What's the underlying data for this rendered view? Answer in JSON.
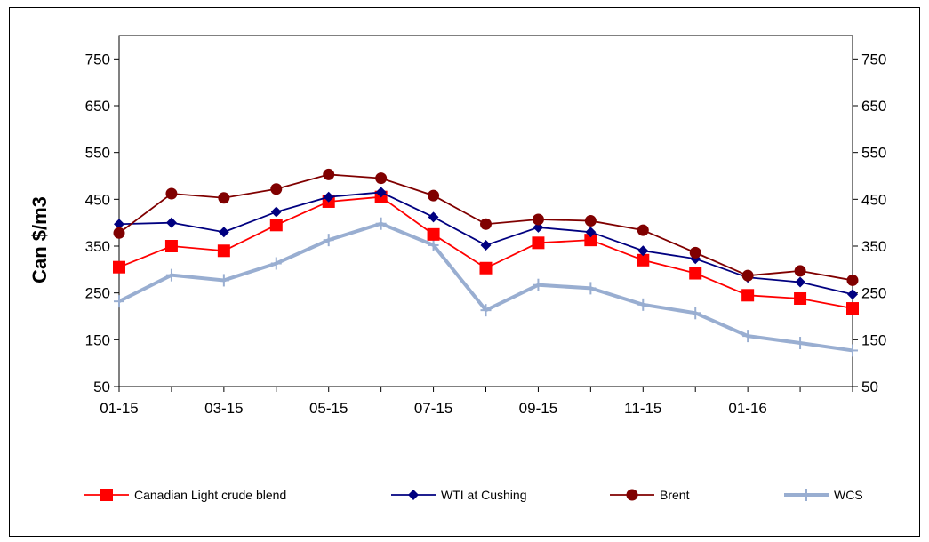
{
  "chart_data": {
    "type": "line",
    "ylabel": "Can $/m3",
    "xlabel": "",
    "title": "",
    "ylim": [
      50,
      800
    ],
    "y_ticks": [
      50,
      150,
      250,
      350,
      450,
      550,
      650,
      750
    ],
    "x": [
      "01-15",
      "02-15",
      "03-15",
      "04-15",
      "05-15",
      "06-15",
      "07-15",
      "08-15",
      "09-15",
      "10-15",
      "11-15",
      "12-15",
      "01-16",
      "02-16",
      "03-16"
    ],
    "x_tick_labels": [
      "01-15",
      "03-15",
      "05-15",
      "07-15",
      "09-15",
      "11-15",
      "01-16"
    ],
    "secondary_y_axis": true,
    "legend_position": "bottom",
    "series": [
      {
        "name": "Canadian Light crude blend",
        "color": "#ff0000",
        "marker": "square",
        "values": [
          305,
          350,
          340,
          395,
          445,
          455,
          375,
          303,
          357,
          363,
          320,
          292,
          245,
          238,
          217
        ]
      },
      {
        "name": "WTI at Cushing",
        "color": "#000080",
        "marker": "diamond",
        "values": [
          397,
          400,
          380,
          423,
          455,
          465,
          412,
          352,
          390,
          380,
          340,
          323,
          283,
          273,
          247
        ]
      },
      {
        "name": "Brent",
        "color": "#800000",
        "marker": "circle",
        "values": [
          378,
          462,
          453,
          472,
          503,
          495,
          458,
          397,
          407,
          404,
          384,
          336,
          287,
          297,
          277
        ]
      },
      {
        "name": "WCS",
        "color": "#99aed1",
        "marker": "plus",
        "values": [
          232,
          288,
          277,
          313,
          363,
          398,
          352,
          213,
          267,
          260,
          225,
          207,
          158,
          143,
          127
        ]
      }
    ]
  }
}
